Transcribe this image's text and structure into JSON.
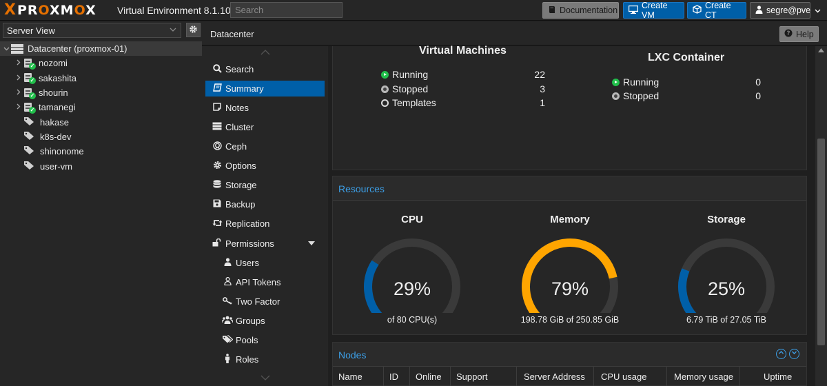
{
  "topbar": {
    "logo_x": "X",
    "logo_word": "PROXMOX",
    "product": "Virtual Environment 8.1.10",
    "search_placeholder": "Search",
    "documentation_label": "Documentation",
    "create_vm_label": "Create VM",
    "create_ct_label": "Create CT",
    "user_label": "segre@pve"
  },
  "tree": {
    "view_label": "Server View",
    "datacenter_label": "Datacenter (proxmox-01)",
    "nodes": [
      {
        "label": "nozomi"
      },
      {
        "label": "sakashita"
      },
      {
        "label": "shourin"
      },
      {
        "label": "tamanegi"
      }
    ],
    "tags": [
      {
        "label": "hakase"
      },
      {
        "label": "k8s-dev"
      },
      {
        "label": "shinonome"
      },
      {
        "label": "user-vm"
      }
    ]
  },
  "header": {
    "title": "Datacenter",
    "help_label": "Help"
  },
  "nav": {
    "items": [
      {
        "label": "Search",
        "icon": "search-icon"
      },
      {
        "label": "Summary",
        "icon": "book-icon"
      },
      {
        "label": "Notes",
        "icon": "notes-icon"
      },
      {
        "label": "Cluster",
        "icon": "server-icon"
      },
      {
        "label": "Ceph",
        "icon": "ceph-icon"
      },
      {
        "label": "Options",
        "icon": "gear-icon"
      },
      {
        "label": "Storage",
        "icon": "database-icon"
      },
      {
        "label": "Backup",
        "icon": "floppy-icon"
      },
      {
        "label": "Replication",
        "icon": "retweet-icon"
      },
      {
        "label": "Permissions",
        "icon": "unlock-icon"
      },
      {
        "label": "Users",
        "icon": "user-icon"
      },
      {
        "label": "API Tokens",
        "icon": "user-outline-icon"
      },
      {
        "label": "Two Factor",
        "icon": "key-icon"
      },
      {
        "label": "Groups",
        "icon": "users-icon"
      },
      {
        "label": "Pools",
        "icon": "tags-icon"
      },
      {
        "label": "Roles",
        "icon": "male-icon"
      }
    ]
  },
  "guests": {
    "vm_title": "Virtual Machines",
    "vm_running_label": "Running",
    "vm_running": "22",
    "vm_stopped_label": "Stopped",
    "vm_stopped": "3",
    "vm_templates_label": "Templates",
    "vm_templates": "1",
    "lxc_title": "LXC Container",
    "lxc_running_label": "Running",
    "lxc_running": "0",
    "lxc_stopped_label": "Stopped",
    "lxc_stopped": "0"
  },
  "resources": {
    "title": "Resources",
    "gauges": [
      {
        "title": "CPU",
        "percent_text": "29%",
        "fraction": 0.29,
        "subtitle": "of 80 CPU(s)",
        "color": "#005fa8"
      },
      {
        "title": "Memory",
        "percent_text": "79%",
        "fraction": 0.79,
        "subtitle": "198.78 GiB of 250.85 GiB",
        "color": "#ffa500"
      },
      {
        "title": "Storage",
        "percent_text": "25%",
        "fraction": 0.25,
        "subtitle": "6.79 TiB of 27.05 TiB",
        "color": "#005fa8"
      }
    ],
    "track_color": "#3a3a3a"
  },
  "nodes": {
    "title": "Nodes",
    "columns": [
      "Name",
      "ID",
      "Online",
      "Support",
      "Server Address",
      "CPU usage",
      "Memory usage",
      "Uptime"
    ]
  },
  "colors": {
    "accent": "#005fa8",
    "link": "#3c9ee5",
    "brand": "#e57000",
    "ok": "#21bf4b"
  }
}
